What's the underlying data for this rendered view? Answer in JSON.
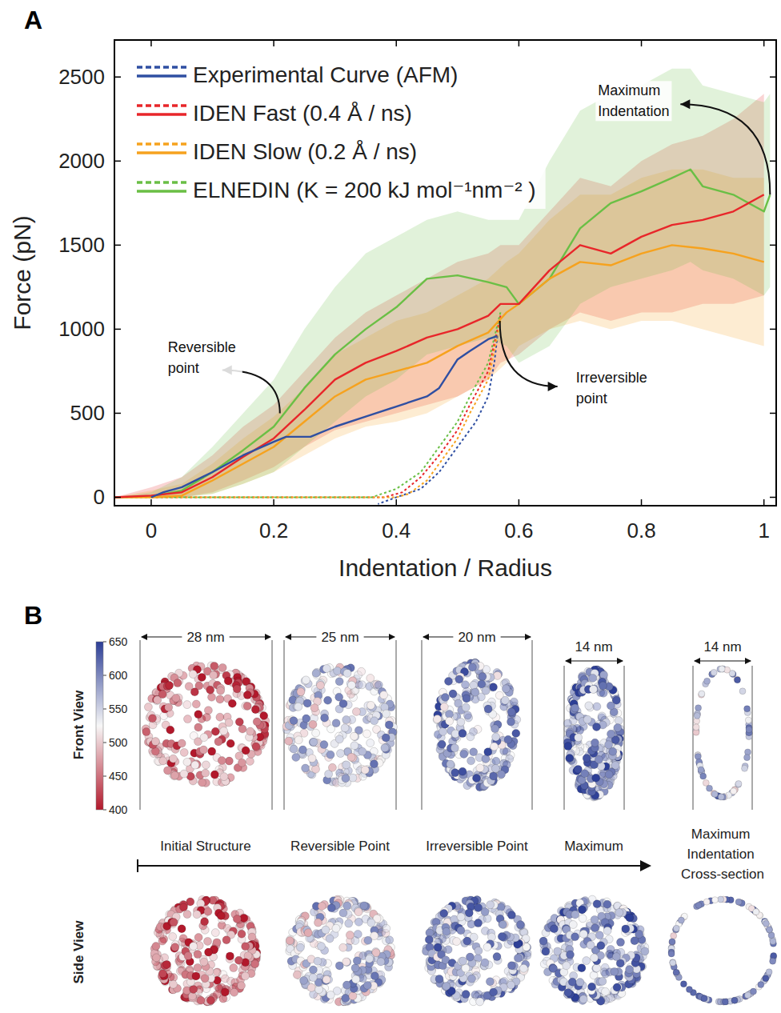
{
  "chart_data": {
    "type": "line",
    "x_label": "Indentation / Radius",
    "y_label": "Force (pN)",
    "xlim": [
      -0.06,
      1.02
    ],
    "ylim": [
      -50,
      2720
    ],
    "xticks": [
      0,
      0.2,
      0.4,
      0.6,
      0.8,
      1
    ],
    "yticks": [
      0,
      500,
      1000,
      1500,
      2000,
      2500
    ],
    "grid": false,
    "legend": "upper left",
    "series": [
      {
        "name": "Experimental Curve (AFM)",
        "color": "#2f4fa2",
        "line_style": "solid",
        "x": [
          0,
          0.02,
          0.05,
          0.1,
          0.15,
          0.2,
          0.22,
          0.26,
          0.3,
          0.35,
          0.4,
          0.45,
          0.47,
          0.5,
          0.52,
          0.55,
          0.565
        ],
        "values": [
          0,
          30,
          60,
          150,
          250,
          330,
          360,
          360,
          420,
          480,
          540,
          600,
          650,
          820,
          870,
          940,
          960
        ]
      },
      {
        "name": "IDEN Fast (0.4 Å / ns)",
        "color": "#e8262a",
        "line_style": "solid",
        "x": [
          -0.06,
          0,
          0.05,
          0.1,
          0.15,
          0.2,
          0.25,
          0.3,
          0.35,
          0.4,
          0.45,
          0.5,
          0.55,
          0.57,
          0.6,
          0.65,
          0.7,
          0.75,
          0.8,
          0.85,
          0.9,
          0.95,
          1.0
        ],
        "values": [
          0,
          10,
          30,
          120,
          240,
          350,
          520,
          700,
          800,
          870,
          950,
          1000,
          1080,
          1150,
          1150,
          1350,
          1500,
          1450,
          1550,
          1620,
          1650,
          1700,
          1800
        ],
        "band_low": [
          0,
          0,
          0,
          30,
          100,
          180,
          300,
          400,
          450,
          500,
          550,
          600,
          700,
          800,
          850,
          1000,
          1100,
          1050,
          1100,
          1100,
          1150,
          1150,
          1200
        ],
        "band_high": [
          0,
          60,
          120,
          250,
          420,
          550,
          750,
          950,
          1100,
          1200,
          1300,
          1400,
          1450,
          1500,
          1500,
          1700,
          1900,
          1850,
          2000,
          2100,
          2150,
          2250,
          2400
        ]
      },
      {
        "name": "IDEN Slow (0.2 Å / ns)",
        "color": "#f6a21e",
        "line_style": "solid",
        "x": [
          -0.06,
          0,
          0.05,
          0.1,
          0.15,
          0.2,
          0.25,
          0.3,
          0.35,
          0.4,
          0.45,
          0.5,
          0.55,
          0.58,
          0.6,
          0.65,
          0.7,
          0.75,
          0.8,
          0.85,
          0.9,
          0.95,
          1.0
        ],
        "values": [
          0,
          0,
          10,
          100,
          200,
          300,
          450,
          600,
          700,
          750,
          800,
          900,
          980,
          1100,
          1150,
          1300,
          1400,
          1380,
          1450,
          1500,
          1480,
          1450,
          1400
        ],
        "band_low": [
          0,
          0,
          0,
          20,
          80,
          150,
          250,
          350,
          420,
          450,
          500,
          600,
          700,
          800,
          900,
          1000,
          1050,
          1000,
          1050,
          1050,
          1000,
          950,
          900
        ],
        "band_high": [
          0,
          40,
          80,
          200,
          350,
          480,
          650,
          850,
          950,
          1050,
          1100,
          1200,
          1300,
          1400,
          1450,
          1650,
          1800,
          1800,
          1900,
          1950,
          1950,
          1900,
          1900
        ]
      },
      {
        "name": "ELNEDIN (K = 200 kJ mol⁻¹nm⁻² )",
        "color": "#6abf45",
        "line_style": "solid",
        "x": [
          -0.06,
          0,
          0.05,
          0.1,
          0.15,
          0.2,
          0.25,
          0.3,
          0.35,
          0.4,
          0.45,
          0.5,
          0.55,
          0.58,
          0.6,
          0.65,
          0.7,
          0.75,
          0.8,
          0.85,
          0.88,
          0.9,
          0.95,
          1.0,
          1.01
        ],
        "values": [
          0,
          5,
          40,
          150,
          280,
          420,
          650,
          850,
          1000,
          1130,
          1300,
          1320,
          1280,
          1250,
          1150,
          1300,
          1600,
          1750,
          1820,
          1900,
          1950,
          1850,
          1800,
          1700,
          1800
        ],
        "band_low": [
          0,
          0,
          0,
          20,
          80,
          150,
          300,
          450,
          600,
          700,
          850,
          900,
          950,
          900,
          800,
          900,
          1150,
          1250,
          1300,
          1350,
          1400,
          1350,
          1300,
          1200,
          1250
        ],
        "band_high": [
          0,
          30,
          120,
          300,
          500,
          700,
          1000,
          1250,
          1450,
          1550,
          1650,
          1700,
          1650,
          1650,
          1650,
          2000,
          2300,
          2400,
          2450,
          2550,
          2550,
          2450,
          2400,
          2350,
          2400
        ]
      },
      {
        "color": "#2f4fa2",
        "line_style": "dotted",
        "x": [
          0.565,
          0.56,
          0.55,
          0.53,
          0.5,
          0.47,
          0.44,
          0.4,
          0.37
        ],
        "values": [
          960,
          800,
          600,
          450,
          300,
          150,
          50,
          0,
          -40
        ]
      },
      {
        "color": "#e8262a",
        "line_style": "dotted",
        "x": [
          0.57,
          0.55,
          0.52,
          0.5,
          0.47,
          0.44,
          0.41,
          0.38,
          0.3,
          0.2,
          0
        ],
        "values": [
          1080,
          750,
          550,
          400,
          250,
          120,
          30,
          0,
          0,
          0,
          0
        ]
      },
      {
        "color": "#f6a21e",
        "line_style": "dotted",
        "x": [
          0.57,
          0.55,
          0.52,
          0.5,
          0.47,
          0.45,
          0.42,
          0.4,
          0.3,
          0
        ],
        "values": [
          1050,
          700,
          500,
          350,
          200,
          100,
          20,
          0,
          0,
          0
        ]
      },
      {
        "color": "#6abf45",
        "line_style": "dotted",
        "x": [
          0.57,
          0.55,
          0.52,
          0.5,
          0.47,
          0.44,
          0.4,
          0.36,
          0.3,
          0.2,
          -0.06
        ],
        "values": [
          1100,
          800,
          600,
          450,
          300,
          150,
          50,
          0,
          0,
          0,
          0
        ]
      }
    ],
    "annotations": [
      {
        "text": "Reversible point",
        "x": 0.21,
        "y": 500
      },
      {
        "text": "Irreversible point",
        "x": 0.569,
        "y": 1050
      },
      {
        "text": "Maximum Indentation",
        "x": 1.01,
        "y": 1800
      }
    ]
  },
  "figure": {
    "panel_letters": [
      "A",
      "B"
    ],
    "row_labels": [
      "Front View",
      "Side View"
    ],
    "stages": [
      {
        "label": "Initial Structure",
        "width": "28 nm"
      },
      {
        "label": "Reversible Point",
        "width": "25 nm"
      },
      {
        "label": "Irreversible Point",
        "width": "20 nm"
      },
      {
        "label": "Maximum",
        "width": "14 nm"
      },
      {
        "label": "Maximum Indentation Cross-section",
        "width": "14 nm"
      }
    ],
    "colorbar": {
      "range": [
        400,
        650
      ],
      "ticks": [
        400,
        450,
        500,
        550,
        600,
        650
      ]
    }
  }
}
